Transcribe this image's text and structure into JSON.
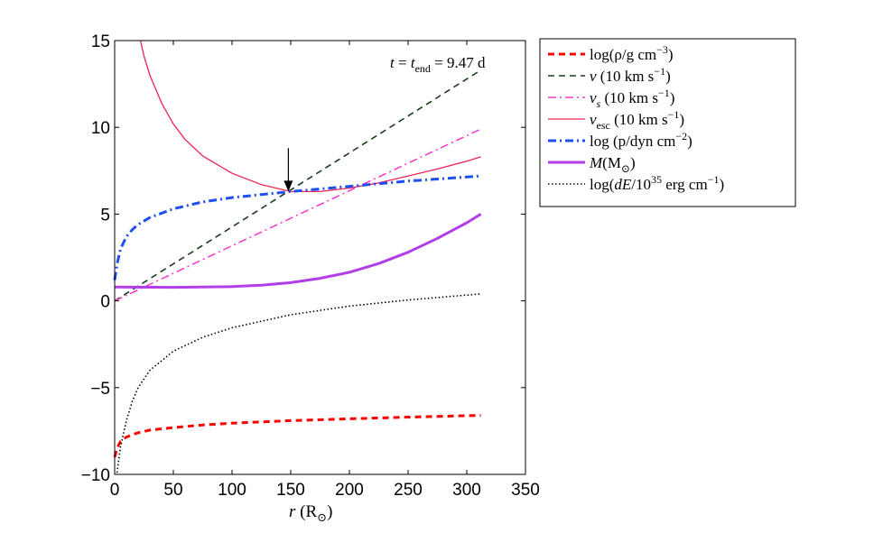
{
  "chart_data": {
    "type": "line",
    "title": "",
    "annotation": {
      "text": "t = t_end = 9.47 d",
      "pre": "t = t",
      "sub": "end",
      "post": " = 9.47 d"
    },
    "arrow_annotation": {
      "x": 148,
      "y_from": 8.8,
      "y_to": 6.3
    },
    "xlabel": {
      "main": "r",
      "open": " (R",
      "sym": "⊙",
      "close": ")"
    },
    "ylabel": "",
    "xlim": [
      0,
      350
    ],
    "ylim": [
      -10,
      15
    ],
    "xticks": [
      0,
      50,
      100,
      150,
      200,
      250,
      300,
      350
    ],
    "yticks": [
      -10,
      -5,
      0,
      5,
      10,
      15
    ],
    "ytick_labels": [
      "−10",
      "−5",
      "0",
      "5",
      "10",
      "15"
    ],
    "grid": false,
    "legend_position": "outside-top-right",
    "series": [
      {
        "name": "log(ρ/g cm⁻³)",
        "color": "#ff0000",
        "style": "dashed",
        "x": [
          0,
          2,
          5,
          10,
          20,
          30,
          50,
          75,
          100,
          150,
          200,
          250,
          312
        ],
        "values": [
          -9.0,
          -8.5,
          -8.1,
          -7.85,
          -7.6,
          -7.45,
          -7.3,
          -7.15,
          -7.05,
          -6.9,
          -6.8,
          -6.7,
          -6.6
        ],
        "legend": {
          "main": "log(ρ/g cm",
          "sup": "−3",
          "tail": ")"
        }
      },
      {
        "name": "v (10 km s⁻¹)",
        "color": "#1a3d1a",
        "style": "dashed",
        "x": [
          0,
          312
        ],
        "values": [
          0.0,
          13.3
        ],
        "legend": {
          "main": "v (10 km s",
          "sup": "−1",
          "tail": ")"
        }
      },
      {
        "name": "v_s (10 km s⁻¹)",
        "color": "#ff33cc",
        "style": "dashdot",
        "x": [
          0,
          312
        ],
        "values": [
          0.0,
          9.9
        ],
        "legend": {
          "main": "v",
          "sub": "s",
          "mid": " (10 km s",
          "sup": "−1",
          "tail": ")"
        }
      },
      {
        "name": "v_esc (10 km s⁻¹)",
        "color": "#ee2255",
        "style": "solid",
        "x": [
          22,
          25,
          30,
          40,
          50,
          60,
          75,
          100,
          125,
          150,
          175,
          200,
          225,
          250,
          275,
          300,
          312
        ],
        "values": [
          15.0,
          14.1,
          13.0,
          11.4,
          10.2,
          9.3,
          8.35,
          7.35,
          6.7,
          6.3,
          6.3,
          6.5,
          6.8,
          7.2,
          7.6,
          8.05,
          8.3
        ],
        "legend": {
          "main": "v",
          "sub": "esc",
          "mid": " (10 km s",
          "sup": "−1",
          "tail": ")"
        }
      },
      {
        "name": "log (p/dyn cm⁻²)",
        "color": "#1e4ff0",
        "style": "dashdot",
        "x": [
          0,
          2,
          5,
          10,
          15,
          20,
          30,
          50,
          75,
          100,
          150,
          200,
          250,
          312
        ],
        "values": [
          1.2,
          2.1,
          3.0,
          3.7,
          4.1,
          4.4,
          4.8,
          5.3,
          5.7,
          5.95,
          6.3,
          6.6,
          6.9,
          7.2
        ],
        "legend": {
          "main": "log (p/dyn cm",
          "sup": "−2",
          "tail": ")"
        }
      },
      {
        "name": "M(M☉)",
        "color": "#b23ee8",
        "style": "solid-thick",
        "x": [
          0,
          50,
          100,
          125,
          150,
          175,
          200,
          225,
          250,
          275,
          300,
          312
        ],
        "values": [
          0.8,
          0.78,
          0.82,
          0.9,
          1.05,
          1.3,
          1.65,
          2.15,
          2.8,
          3.6,
          4.5,
          5.0
        ],
        "legend": {
          "main": "M",
          "mid": "(M",
          "sym": "⊙",
          "tail": ")"
        }
      },
      {
        "name": "log(dE/10³⁵ erg cm⁻¹)",
        "color": "#000000",
        "style": "dotted",
        "x": [
          2,
          5,
          10,
          15,
          20,
          30,
          50,
          75,
          100,
          150,
          200,
          250,
          312
        ],
        "values": [
          -9.9,
          -8.4,
          -6.9,
          -5.8,
          -5.0,
          -4.0,
          -2.9,
          -2.1,
          -1.55,
          -0.8,
          -0.3,
          0.05,
          0.4
        ],
        "legend": {
          "main": "log(dE/10",
          "sup": "35",
          "mid": " erg cm",
          "sup2": "−1",
          "tail": ")"
        }
      }
    ]
  }
}
